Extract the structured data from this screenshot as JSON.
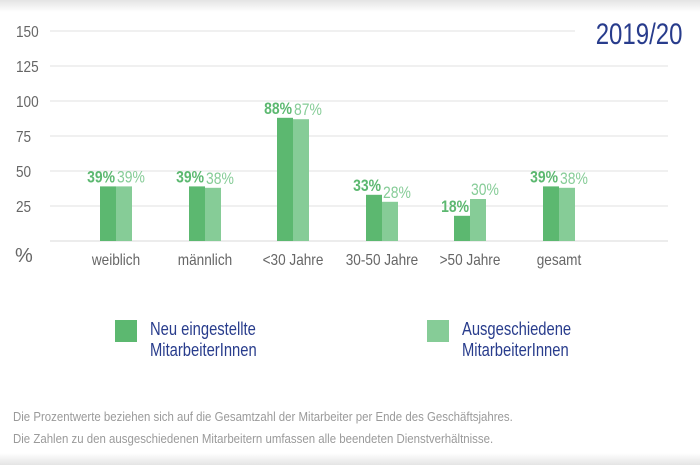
{
  "chart_data": {
    "type": "bar",
    "title": "2019/20",
    "ylabel": "%",
    "ylim": [
      0,
      150
    ],
    "yticks": [
      "25",
      "50",
      "75",
      "100",
      "125",
      "150"
    ],
    "grid": true,
    "legend_position": "bottom",
    "categories": [
      "weiblich",
      "männlich",
      "<30 Jahre",
      "30-50 Jahre",
      ">50 Jahre",
      "gesamt"
    ],
    "series": [
      {
        "name": "Neu eingestellte MitarbeiterInnen",
        "values": [
          39,
          39,
          88,
          33,
          18,
          39
        ],
        "labels": [
          "39%",
          "39%",
          "88%",
          "33%",
          "18%",
          "39%"
        ],
        "color": "#5cb870"
      },
      {
        "name": "Ausgeschiedene MitarbeiterInnen",
        "values": [
          39,
          38,
          87,
          28,
          30,
          38
        ],
        "labels": [
          "39%",
          "38%",
          "87%",
          "28%",
          "30%",
          "38%"
        ],
        "color": "#86cc97"
      }
    ]
  },
  "legend": [
    {
      "label": "Neu eingestellte\nMitarbeiterInnen",
      "color": "#5cb870"
    },
    {
      "label": "Ausgeschiedene\nMitarbeiterInnen",
      "color": "#86cc97"
    }
  ],
  "footnote": {
    "line1": "Die Prozentwerte beziehen sich auf die Gesamtzahl der Mitarbeiter per Ende des Geschäftsjahres.",
    "line2": "Die Zahlen zu den ausgeschiedenen Mitarbeitern umfassen alle beendeten Dienstverhältnisse."
  }
}
